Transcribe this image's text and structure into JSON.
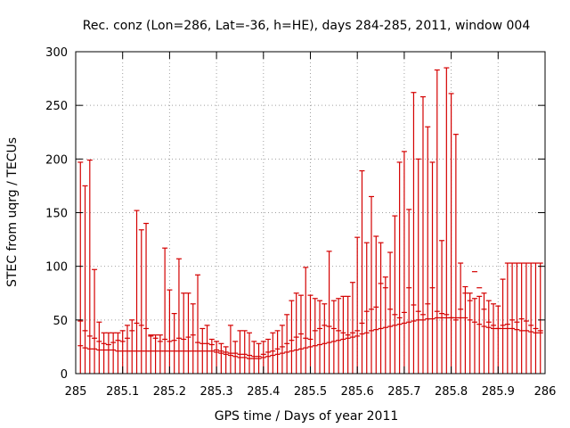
{
  "chart_data": {
    "type": "errorbar",
    "title": "Rec. conz (Lon=286, Lat=-36, h=HE), days 284-285, 2011, window 004",
    "xlabel": "GPS time / Days of year 2011",
    "ylabel": "STEC from uqrg / TECUs",
    "xlim": [
      285,
      286
    ],
    "ylim": [
      0,
      300
    ],
    "x_ticks": [
      285,
      285.1,
      285.2,
      285.3,
      285.4,
      285.5,
      285.6,
      285.7,
      285.8,
      285.9,
      286
    ],
    "x_tick_labels": [
      "285",
      "285.1",
      "285.2",
      "285.3",
      "285.4",
      "285.5",
      "285.6",
      "285.7",
      "285.8",
      "285.9",
      "286"
    ],
    "y_ticks": [
      0,
      50,
      100,
      150,
      200,
      250,
      300
    ],
    "y_tick_labels": [
      "0",
      "50",
      "100",
      "150",
      "200",
      "250",
      "300"
    ],
    "grid": true,
    "color": "#d40000",
    "series": [
      {
        "x": [
          285.01,
          285.02,
          285.03,
          285.04,
          285.05,
          285.06,
          285.07,
          285.08,
          285.09,
          285.1,
          285.11,
          285.12,
          285.13,
          285.14,
          285.15,
          285.16,
          285.17,
          285.18,
          285.19,
          285.2,
          285.21,
          285.22,
          285.23,
          285.24,
          285.25,
          285.26,
          285.27,
          285.28,
          285.29,
          285.3,
          285.31,
          285.32,
          285.33,
          285.34,
          285.35,
          285.36,
          285.37,
          285.38,
          285.39,
          285.4,
          285.41,
          285.42,
          285.43,
          285.44,
          285.45,
          285.46,
          285.47,
          285.48,
          285.49,
          285.5,
          285.51,
          285.52,
          285.53,
          285.54,
          285.55,
          285.56,
          285.57,
          285.58,
          285.59,
          285.6,
          285.61,
          285.62,
          285.63,
          285.64,
          285.65,
          285.66,
          285.67,
          285.68,
          285.69,
          285.7,
          285.71,
          285.72,
          285.73,
          285.74,
          285.75,
          285.76,
          285.77,
          285.78,
          285.79,
          285.8,
          285.81,
          285.82,
          285.83,
          285.84,
          285.85,
          285.86,
          285.87,
          285.88,
          285.89,
          285.9,
          285.91,
          285.92,
          285.93,
          285.94,
          285.95,
          285.96,
          285.97,
          285.98,
          285.99
        ],
        "y": [
          49,
          40,
          35,
          33,
          30,
          28,
          27,
          29,
          31,
          30,
          33,
          40,
          47,
          45,
          42,
          35,
          33,
          30,
          32,
          30,
          31,
          33,
          32,
          34,
          36,
          29,
          28,
          28,
          27,
          22,
          21,
          20,
          19,
          19,
          18,
          18,
          17,
          16,
          16,
          18,
          20,
          21,
          23,
          25,
          28,
          31,
          34,
          37,
          33,
          32,
          40,
          42,
          45,
          44,
          42,
          40,
          38,
          36,
          38,
          40,
          47,
          58,
          60,
          62,
          84,
          80,
          60,
          55,
          52,
          57,
          80,
          64,
          58,
          55,
          65,
          80,
          58,
          56,
          55,
          52,
          50,
          60,
          75,
          68,
          95,
          80,
          60,
          48,
          45,
          42,
          45,
          46,
          50,
          48,
          51,
          49,
          45,
          42,
          40
        ],
        "low": [
          26,
          24,
          23,
          23,
          22,
          22,
          22,
          22,
          21,
          21,
          21,
          21,
          21,
          21,
          21,
          21,
          21,
          21,
          21,
          21,
          21,
          21,
          21,
          21,
          21,
          21,
          21,
          21,
          21,
          20,
          19,
          18,
          17,
          16,
          15,
          15,
          14,
          14,
          14,
          15,
          16,
          17,
          18,
          19,
          20,
          21,
          22,
          23,
          24,
          25,
          26,
          27,
          28,
          29,
          30,
          31,
          32,
          33,
          34,
          35,
          37,
          38,
          40,
          41,
          42,
          43,
          44,
          45,
          46,
          47,
          48,
          49,
          50,
          50,
          51,
          51,
          52,
          52,
          52,
          52,
          52,
          52,
          52,
          50,
          48,
          46,
          44,
          43,
          42,
          42,
          42,
          42,
          42,
          41,
          40,
          40,
          39,
          38,
          38
        ],
        "high": [
          197,
          175,
          199,
          97,
          48,
          38,
          38,
          38,
          38,
          40,
          45,
          50,
          152,
          134,
          140,
          36,
          36,
          36,
          117,
          78,
          56,
          107,
          75,
          75,
          65,
          92,
          42,
          45,
          32,
          30,
          28,
          25,
          45,
          30,
          40,
          40,
          38,
          30,
          28,
          30,
          32,
          38,
          40,
          45,
          55,
          68,
          75,
          73,
          99,
          73,
          70,
          68,
          65,
          114,
          68,
          70,
          72,
          72,
          85,
          127,
          189,
          122,
          165,
          128,
          122,
          90,
          113,
          147,
          197,
          207,
          153,
          262,
          200,
          258,
          230,
          197,
          283,
          124,
          285,
          261,
          223,
          103,
          81,
          75,
          70,
          72,
          75,
          68,
          65,
          63,
          88,
          103,
          103,
          103,
          103,
          103,
          103,
          103,
          103
        ]
      }
    ]
  }
}
